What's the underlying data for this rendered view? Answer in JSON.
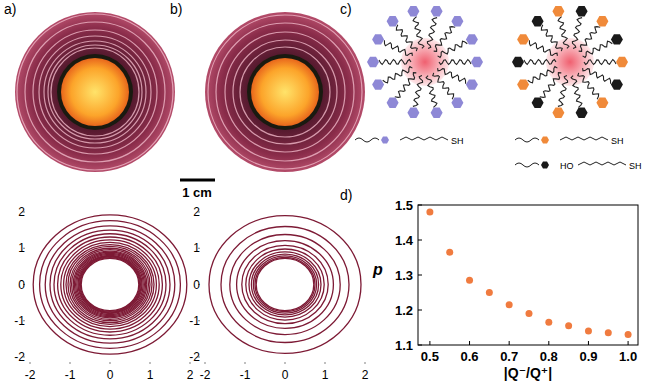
{
  "panel_labels": [
    "a)",
    "b)",
    "c)",
    "d)"
  ],
  "scale_bar": {
    "label": "1 cm"
  },
  "schematic": {
    "thiol_labels": [
      "SH",
      "SH",
      "SH"
    ],
    "hydroxyl_label": "HO"
  },
  "chart_data": [
    {
      "type": "rings",
      "radii": [
        0.72,
        0.74,
        0.76,
        0.78,
        0.8,
        0.83,
        0.86,
        0.89,
        0.92,
        0.96,
        1.0,
        1.05,
        1.1,
        1.16,
        1.23,
        1.31,
        1.4,
        1.5,
        1.62,
        1.76,
        1.92
      ],
      "xlim": [
        -2,
        2
      ],
      "ylim": [
        -2,
        2
      ],
      "xticks": [
        -2,
        -1,
        0,
        1,
        2
      ],
      "yticks": [
        -2,
        -1,
        0,
        1,
        2
      ],
      "color": "#7d1a35"
    },
    {
      "type": "rings",
      "radii": [
        0.72,
        0.75,
        0.79,
        0.84,
        0.9,
        0.98,
        1.08,
        1.21,
        1.38,
        1.6,
        1.9
      ],
      "xlim": [
        -2,
        2
      ],
      "ylim": [
        -2,
        2
      ],
      "xticks": [
        -2,
        -1,
        0,
        1,
        2
      ],
      "yticks": [
        -2,
        -1,
        0,
        1,
        2
      ],
      "color": "#7d1a35"
    },
    {
      "type": "scatter",
      "x_label": "|Q⁻/Q⁺|",
      "y_label": "p",
      "x": [
        0.5,
        0.55,
        0.6,
        0.65,
        0.7,
        0.75,
        0.8,
        0.85,
        0.9,
        0.95,
        1.0
      ],
      "values": [
        1.48,
        1.365,
        1.285,
        1.25,
        1.215,
        1.19,
        1.165,
        1.155,
        1.14,
        1.135,
        1.13
      ],
      "xlim": [
        0.47,
        1.025
      ],
      "ylim": [
        1.1,
        1.5
      ],
      "xticks": [
        0.5,
        0.6,
        0.7,
        0.8,
        0.9,
        {
          "value": 1,
          "label": "1.0"
        }
      ],
      "yticks": [
        1.1,
        1.2,
        1.3,
        1.4,
        1.5
      ],
      "color": "#f07b3f",
      "marker": "circle"
    }
  ]
}
